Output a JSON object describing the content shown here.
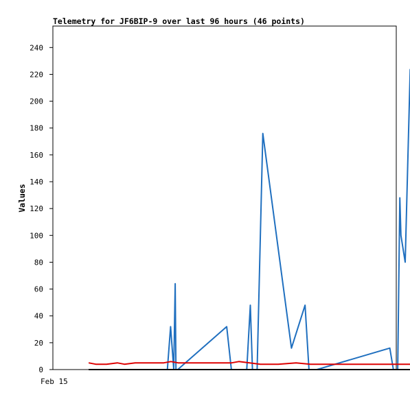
{
  "chart_data": {
    "type": "line",
    "title": "Telemetry for JF6BIP-9 over last 96 hours (46 points)",
    "xlabel": "",
    "ylabel": "Values",
    "x_tick_labels": [
      "Feb 15"
    ],
    "y_ticks": [
      0,
      20,
      40,
      60,
      80,
      100,
      120,
      140,
      160,
      180,
      200,
      220,
      240
    ],
    "ylim": [
      0,
      256
    ],
    "xlim": [
      0,
      96
    ],
    "grid": false,
    "legend": "none",
    "series": [
      {
        "color": "#1f6fbf",
        "points": [
          [
            32.0,
            0
          ],
          [
            32.9,
            32
          ],
          [
            33.8,
            0
          ],
          [
            34.2,
            64
          ],
          [
            34.4,
            0
          ],
          [
            34.9,
            0
          ],
          [
            48.6,
            32
          ],
          [
            49.9,
            0
          ],
          [
            54.2,
            0
          ],
          [
            55.2,
            48
          ],
          [
            55.8,
            0
          ],
          [
            57.1,
            0
          ],
          [
            58.7,
            176
          ],
          [
            66.7,
            16
          ],
          [
            70.5,
            48
          ],
          [
            71.6,
            0
          ],
          [
            73.8,
            0
          ],
          [
            94.2,
            16
          ],
          [
            95.2,
            0
          ],
          [
            96.4,
            0
          ],
          [
            97.0,
            128
          ],
          [
            97.3,
            100
          ],
          [
            98.5,
            80
          ],
          [
            99.9,
            224
          ]
        ]
      },
      {
        "color": "#dd0000",
        "points": [
          [
            10.0,
            5
          ],
          [
            12.0,
            4
          ],
          [
            15.0,
            4
          ],
          [
            18.0,
            5
          ],
          [
            20.0,
            4
          ],
          [
            23.0,
            5
          ],
          [
            31.0,
            5
          ],
          [
            33.0,
            6
          ],
          [
            35.0,
            5
          ],
          [
            42.0,
            5
          ],
          [
            48.0,
            5
          ],
          [
            50.0,
            5
          ],
          [
            52.0,
            6
          ],
          [
            55.0,
            5
          ],
          [
            58.0,
            4
          ],
          [
            63.0,
            4
          ],
          [
            68.0,
            5
          ],
          [
            72.0,
            4
          ],
          [
            80.0,
            4
          ],
          [
            90.0,
            4
          ],
          [
            100.0,
            4
          ]
        ]
      },
      {
        "color": "#000000",
        "points": [
          [
            10.0,
            0
          ],
          [
            100.0,
            0
          ]
        ]
      }
    ]
  }
}
